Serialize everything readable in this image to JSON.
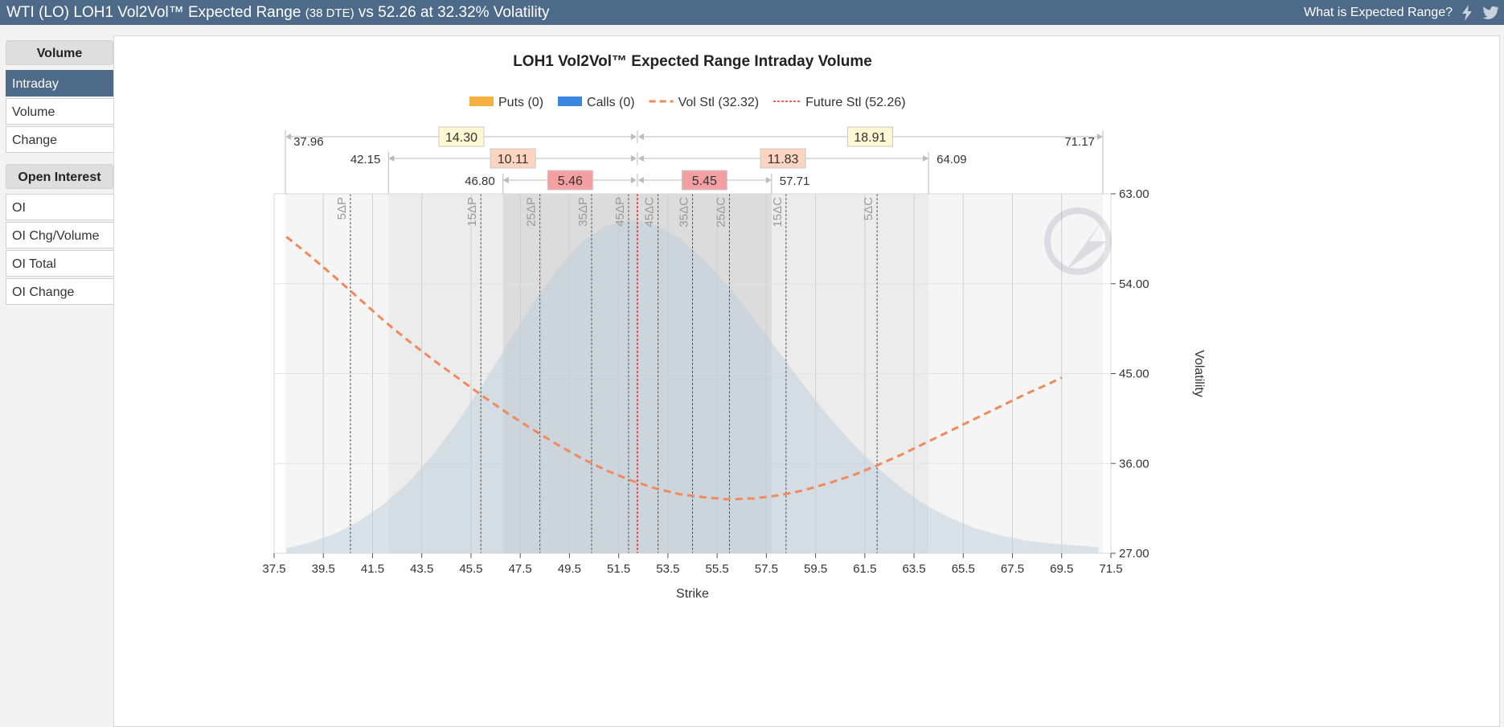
{
  "header": {
    "title_main": "WTI (LO) LOH1 Vol2Vol™ Expected Range",
    "title_dte": "(38 DTE)",
    "title_tail": "vs 52.26 at 32.32% Volatility",
    "help_link": "What is Expected Range?",
    "icons": [
      "lightning-icon",
      "twitter-icon"
    ]
  },
  "sidebar": {
    "volume_header": "Volume",
    "volume_items": [
      {
        "label": "Intraday",
        "active": true
      },
      {
        "label": "Volume",
        "active": false
      },
      {
        "label": "Change",
        "active": false
      }
    ],
    "oi_header": "Open Interest",
    "oi_items": [
      {
        "label": "OI"
      },
      {
        "label": "OI Chg/Volume"
      },
      {
        "label": "OI Total"
      },
      {
        "label": "OI Change"
      }
    ]
  },
  "colors": {
    "header_bg": "#4d6a89",
    "puts": "#f5b040",
    "calls": "#3b87e0",
    "vol_curve": "#f08a5d",
    "future_line": "#e0302a"
  },
  "chart_data": {
    "type": "line",
    "title": "LOH1 Vol2Vol™ Expected Range Intraday Volume",
    "xlabel": "Strike",
    "ylabel": "Volatility",
    "xlim": [
      37.5,
      71.5
    ],
    "ylim": [
      27,
      63
    ],
    "x_ticks": [
      "37.5",
      "39.5",
      "41.5",
      "43.5",
      "45.5",
      "47.5",
      "49.5",
      "51.5",
      "53.5",
      "55.5",
      "57.5",
      "59.5",
      "61.5",
      "63.5",
      "65.5",
      "67.5",
      "69.5",
      "71.5"
    ],
    "y_ticks": [
      "27.00",
      "36.00",
      "45.00",
      "54.00",
      "63.00"
    ],
    "legend": [
      {
        "name": "Puts (0)",
        "kind": "box",
        "color": "#f5b040"
      },
      {
        "name": "Calls (0)",
        "kind": "box",
        "color": "#3b87e0"
      },
      {
        "name": "Vol Stl (32.32)",
        "kind": "dash",
        "color": "#f08a5d"
      },
      {
        "name": "Future Stl (52.26)",
        "kind": "dot",
        "color": "#e0302a"
      }
    ],
    "future_settle": 52.26,
    "series": [
      {
        "name": "Vol Stl (32.32)",
        "x": [
          38,
          39,
          40,
          41,
          42,
          43,
          44,
          45,
          46,
          47,
          48,
          49,
          50,
          51,
          52,
          53,
          54,
          55,
          56,
          57,
          58,
          59,
          60,
          61,
          62,
          63,
          64,
          65,
          66,
          67,
          68,
          69,
          69.5
        ],
        "y": [
          58.7,
          56.7,
          54.6,
          52.4,
          50.2,
          48.2,
          46.3,
          44.5,
          42.7,
          41.0,
          39.4,
          37.9,
          36.5,
          35.3,
          34.3,
          33.5,
          32.9,
          32.6,
          32.4,
          32.5,
          32.8,
          33.3,
          34.0,
          34.8,
          35.8,
          36.9,
          38.1,
          39.3,
          40.5,
          41.7,
          42.9,
          44.0,
          44.6
        ]
      }
    ],
    "distribution": {
      "x": [
        38,
        39,
        40,
        41,
        42,
        43,
        44,
        45,
        46,
        47,
        48,
        49,
        50,
        51,
        52,
        53,
        54,
        55,
        56,
        57,
        58,
        59,
        60,
        61,
        62,
        63,
        64,
        65,
        66,
        67,
        68,
        69,
        70,
        71
      ],
      "y": [
        27.5,
        28.1,
        29.0,
        30.3,
        32.0,
        34.2,
        37.0,
        40.3,
        44.0,
        48.0,
        52.0,
        55.4,
        58.2,
        59.8,
        60.4,
        59.9,
        58.5,
        56.3,
        53.6,
        50.5,
        47.2,
        43.9,
        40.8,
        38.0,
        35.6,
        33.5,
        31.8,
        30.5,
        29.5,
        28.8,
        28.3,
        28.0,
        27.8,
        27.6
      ]
    },
    "delta_lines": [
      {
        "label": "5ΔP",
        "x": 40.6
      },
      {
        "label": "15ΔP",
        "x": 45.9
      },
      {
        "label": "25ΔP",
        "x": 48.3
      },
      {
        "label": "35ΔP",
        "x": 50.4
      },
      {
        "label": "45ΔP",
        "x": 51.9
      },
      {
        "label": "45ΔC",
        "x": 53.1
      },
      {
        "label": "35ΔC",
        "x": 54.5
      },
      {
        "label": "25ΔC",
        "x": 56.0
      },
      {
        "label": "15ΔC",
        "x": 58.3
      },
      {
        "label": "5ΔC",
        "x": 62.0
      }
    ],
    "ranges": [
      {
        "low": "37.96",
        "high": "71.17",
        "low_width": "14.30",
        "high_width": "18.91",
        "low_x": 37.96,
        "high_x": 71.17,
        "box_color": "#fff8d2"
      },
      {
        "low": "42.15",
        "high": "64.09",
        "low_width": "10.11",
        "high_width": "11.83",
        "low_x": 42.15,
        "high_x": 64.09,
        "box_color": "#fdd4c0"
      },
      {
        "low": "46.80",
        "high": "57.71",
        "low_width": "5.46",
        "high_width": "5.45",
        "low_x": 46.8,
        "high_x": 57.71,
        "box_color": "#f4a0a3"
      }
    ]
  }
}
